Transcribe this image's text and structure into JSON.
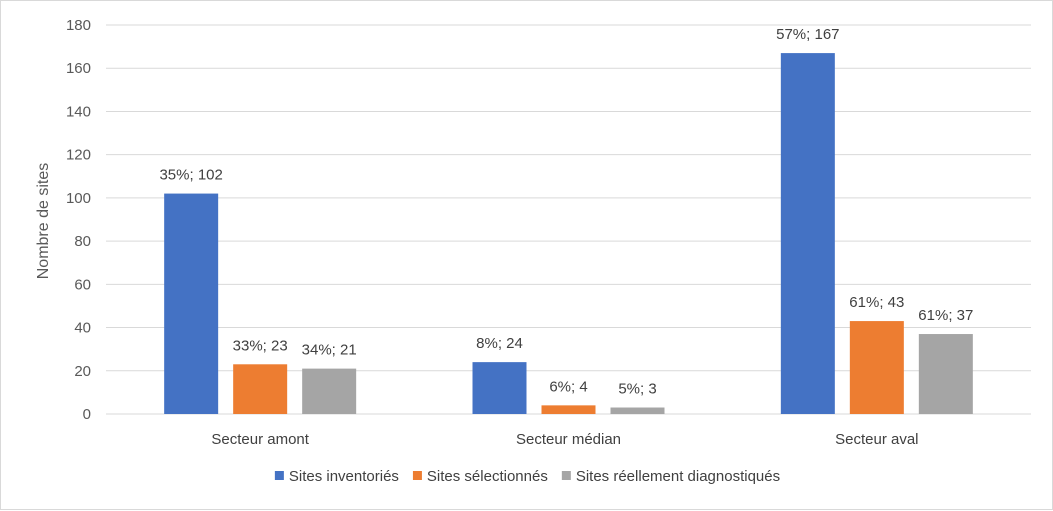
{
  "chart_data": {
    "type": "bar",
    "title": "",
    "xlabel": "",
    "ylabel": "Nombre de sites",
    "ylim": [
      0,
      180
    ],
    "yticks": [
      0,
      20,
      40,
      60,
      80,
      100,
      120,
      140,
      160,
      180
    ],
    "grid": true,
    "legend_position": "bottom",
    "categories": [
      "Secteur amont",
      "Secteur médian",
      "Secteur aval"
    ],
    "series": [
      {
        "name": "Sites inventoriés",
        "color": "#4472C4",
        "values": [
          102,
          24,
          167
        ],
        "labels": [
          "35%; 102",
          "8%; 24",
          "57%; 167"
        ]
      },
      {
        "name": "Sites sélectionnés",
        "color": "#ED7D31",
        "values": [
          23,
          4,
          43
        ],
        "labels": [
          "33%; 23",
          "6%; 4",
          "61%; 43"
        ]
      },
      {
        "name": "Sites réellement diagnostiqués",
        "color": "#A5A5A5",
        "values": [
          21,
          3,
          37
        ],
        "labels": [
          "34%; 21",
          "5%; 3",
          "61%; 37"
        ]
      }
    ]
  }
}
